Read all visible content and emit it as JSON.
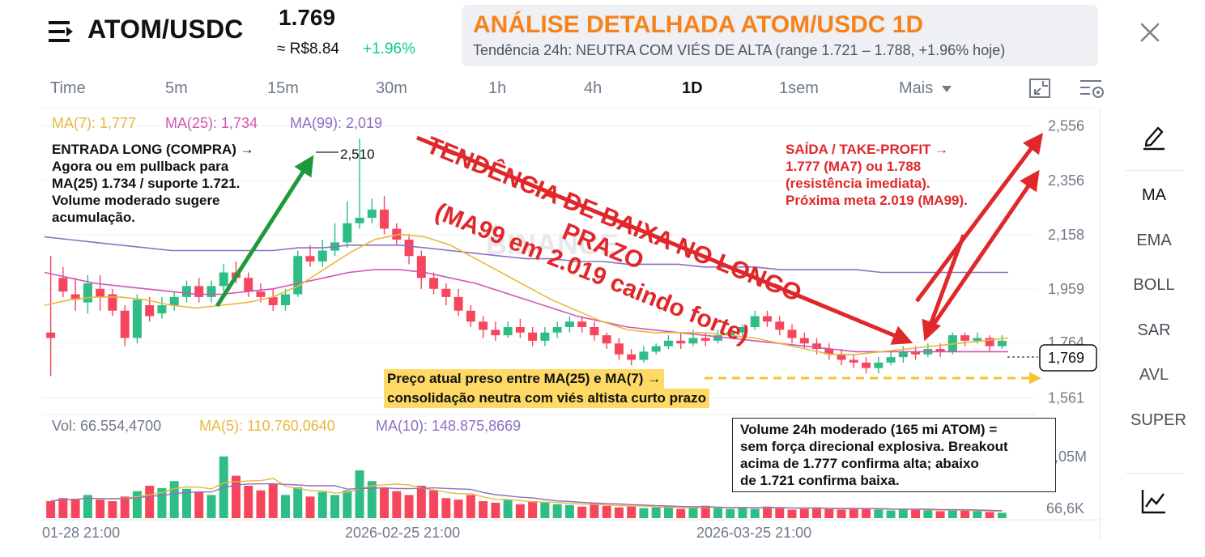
{
  "header": {
    "pair": "ATOM/USDC",
    "price": "1.769",
    "fiat": "≈ R$8.84",
    "change": "+1.96%"
  },
  "banner": {
    "title": "ANÁLISE DETALHADA ATOM/USDC 1D",
    "subtitle": "Tendência 24h: NEUTRA COM VIÉS DE ALTA (range 1.721 – 1.788, +1.96% hoje)"
  },
  "tabs": [
    "Time",
    "5m",
    "15m",
    "30m",
    "1h",
    "4h",
    "1D",
    "1sem",
    "Mais"
  ],
  "active_tab": "1D",
  "side_panel": [
    "MA",
    "EMA",
    "BOLL",
    "SAR",
    "AVL",
    "SUPER"
  ],
  "icons": {
    "menu": "menu-icon",
    "close": "close-icon",
    "toolbar1": "fullscreen-icon",
    "toolbar2": "settings-icon",
    "draw": "pencil-icon",
    "indicator": "chart-line-icon",
    "dropdown": "caret-down-icon"
  },
  "legend": {
    "ma7": "MA(7): 1,777",
    "ma25": "MA(25): 1,734",
    "ma99": "MA(99): 2,019",
    "vol": "Vol: 66.554,4700",
    "vma5": "MA(5): 110.760,0640",
    "vma10": "MA(10): 148.875,8669"
  },
  "watermark": "BINANCE",
  "annotations": {
    "trend_title_1": "TENDÊNCIA DE BAIXA NO LONGO PRAZO",
    "trend_title_2": "(MA99 em 2.019 caindo forte)",
    "entry": [
      "ENTRADA LONG (COMPRA) →",
      "Agora ou em pullback para",
      "MA(25) 1.734 / suporte 1.721.",
      "Volume moderado sugere",
      "acumulação."
    ],
    "exit": [
      "SAÍDA / TAKE-PROFIT →",
      "1.777 (MA7) ou 1.788",
      "(resistência imediata).",
      "Próxima meta 2.019 (MA99)."
    ],
    "yellow": [
      "Preço atual preso entre MA(25) e MA(7) →",
      "consolidação neutra com viés altista curto prazo"
    ],
    "volume_box": [
      "Volume 24h moderado (165 mi ATOM) =",
      "sem força direcional explosiva. Breakout",
      "acima de 1.777 confirma alta; abaixo",
      "de 1.721 confirma baixa."
    ]
  },
  "chart_data": {
    "type": "candlestick",
    "y_ticks": [
      "2,556",
      "2,356",
      "2,158",
      "1,959",
      "1,764",
      "1,561"
    ],
    "ylim": [
      1.5,
      2.62
    ],
    "high_label": "2,510",
    "current_price_label": "1,769",
    "volume_ticks": [
      "1,05M",
      "66,6K"
    ],
    "x_ticks": [
      "01-28 21:00",
      "2026-02-25 21:00",
      "2026-03-25 21:00"
    ],
    "candles": [
      [
        1.8,
        1.78,
        2.08,
        1.64
      ],
      [
        2.0,
        1.95,
        2.04,
        1.93
      ],
      [
        1.94,
        1.92,
        2.0,
        1.88
      ],
      [
        1.91,
        1.98,
        2.01,
        1.87
      ],
      [
        1.96,
        1.93,
        2.01,
        1.88
      ],
      [
        1.94,
        1.88,
        1.96,
        1.86
      ],
      [
        1.88,
        1.78,
        1.9,
        1.75
      ],
      [
        1.78,
        1.92,
        1.94,
        1.76
      ],
      [
        1.9,
        1.86,
        1.93,
        1.84
      ],
      [
        1.87,
        1.9,
        1.93,
        1.85
      ],
      [
        1.9,
        1.93,
        1.95,
        1.88
      ],
      [
        1.93,
        1.97,
        1.99,
        1.91
      ],
      [
        1.97,
        1.93,
        2.0,
        1.91
      ],
      [
        1.93,
        1.97,
        1.99,
        1.91
      ],
      [
        1.97,
        2.02,
        2.05,
        1.95
      ],
      [
        2.02,
        2.0,
        2.06,
        1.98
      ],
      [
        2.0,
        1.95,
        2.02,
        1.93
      ],
      [
        1.95,
        1.93,
        1.98,
        1.91
      ],
      [
        1.93,
        1.9,
        1.96,
        1.88
      ],
      [
        1.9,
        1.94,
        1.96,
        1.88
      ],
      [
        1.94,
        2.08,
        2.1,
        1.93
      ],
      [
        2.08,
        2.06,
        2.12,
        2.04
      ],
      [
        2.06,
        2.1,
        2.14,
        2.04
      ],
      [
        2.1,
        2.13,
        2.2,
        2.08
      ],
      [
        2.13,
        2.2,
        2.28,
        2.11
      ],
      [
        2.2,
        2.22,
        2.51,
        2.18
      ],
      [
        2.22,
        2.25,
        2.29,
        2.2
      ],
      [
        2.25,
        2.18,
        2.3,
        2.16
      ],
      [
        2.18,
        2.14,
        2.2,
        2.12
      ],
      [
        2.14,
        2.08,
        2.16,
        2.05
      ],
      [
        2.08,
        2.0,
        2.1,
        1.96
      ],
      [
        2.0,
        1.96,
        2.02,
        1.94
      ],
      [
        1.96,
        1.93,
        1.98,
        1.9
      ],
      [
        1.93,
        1.88,
        1.96,
        1.86
      ],
      [
        1.88,
        1.84,
        1.9,
        1.82
      ],
      [
        1.84,
        1.81,
        1.86,
        1.78
      ],
      [
        1.81,
        1.79,
        1.84,
        1.77
      ],
      [
        1.79,
        1.82,
        1.84,
        1.78
      ],
      [
        1.82,
        1.8,
        1.85,
        1.78
      ],
      [
        1.8,
        1.77,
        1.82,
        1.75
      ],
      [
        1.77,
        1.8,
        1.82,
        1.75
      ],
      [
        1.8,
        1.82,
        1.84,
        1.78
      ],
      [
        1.82,
        1.84,
        1.86,
        1.8
      ],
      [
        1.84,
        1.82,
        1.86,
        1.8
      ],
      [
        1.82,
        1.79,
        1.84,
        1.77
      ],
      [
        1.79,
        1.76,
        1.8,
        1.74
      ],
      [
        1.76,
        1.72,
        1.78,
        1.7
      ],
      [
        1.72,
        1.7,
        1.74,
        1.68
      ],
      [
        1.7,
        1.73,
        1.75,
        1.69
      ],
      [
        1.73,
        1.75,
        1.76,
        1.72
      ],
      [
        1.75,
        1.77,
        1.79,
        1.74
      ],
      [
        1.77,
        1.76,
        1.8,
        1.74
      ],
      [
        1.76,
        1.78,
        1.81,
        1.75
      ],
      [
        1.78,
        1.77,
        1.8,
        1.75
      ],
      [
        1.77,
        1.79,
        1.81,
        1.76
      ],
      [
        1.79,
        1.8,
        1.82,
        1.78
      ],
      [
        1.8,
        1.82,
        1.83,
        1.78
      ],
      [
        1.82,
        1.86,
        1.88,
        1.81
      ],
      [
        1.86,
        1.84,
        1.88,
        1.82
      ],
      [
        1.84,
        1.81,
        1.86,
        1.79
      ],
      [
        1.81,
        1.78,
        1.83,
        1.76
      ],
      [
        1.78,
        1.76,
        1.8,
        1.74
      ],
      [
        1.76,
        1.74,
        1.78,
        1.72
      ],
      [
        1.74,
        1.72,
        1.76,
        1.7
      ],
      [
        1.72,
        1.7,
        1.74,
        1.68
      ],
      [
        1.7,
        1.69,
        1.72,
        1.67
      ],
      [
        1.69,
        1.67,
        1.71,
        1.65
      ],
      [
        1.67,
        1.69,
        1.71,
        1.65
      ],
      [
        1.69,
        1.71,
        1.73,
        1.68
      ],
      [
        1.71,
        1.73,
        1.75,
        1.69
      ],
      [
        1.73,
        1.72,
        1.75,
        1.7
      ],
      [
        1.72,
        1.74,
        1.76,
        1.71
      ],
      [
        1.74,
        1.73,
        1.76,
        1.71
      ],
      [
        1.73,
        1.79,
        1.8,
        1.72
      ],
      [
        1.79,
        1.77,
        1.8,
        1.75
      ],
      [
        1.77,
        1.78,
        1.8,
        1.76
      ],
      [
        1.78,
        1.75,
        1.79,
        1.73
      ],
      [
        1.75,
        1.77,
        1.79,
        1.74
      ]
    ],
    "ma7": [
      1.9,
      1.92,
      1.93,
      1.93,
      1.92,
      1.9,
      1.89,
      1.9,
      1.91,
      1.93,
      1.97,
      2.03,
      2.09,
      2.14,
      2.16,
      2.15,
      2.12,
      2.07,
      2.02,
      1.97,
      1.92,
      1.88,
      1.84,
      1.81,
      1.8,
      1.8,
      1.8,
      1.79,
      1.78,
      1.76,
      1.74,
      1.72,
      1.72,
      1.73,
      1.74,
      1.75,
      1.76,
      1.77,
      1.78
    ],
    "ma25": [
      2.02,
      2.0,
      1.98,
      1.97,
      1.96,
      1.95,
      1.94,
      1.94,
      1.95,
      1.96,
      1.98,
      2.0,
      2.02,
      2.03,
      2.03,
      2.02,
      2.0,
      1.98,
      1.95,
      1.92,
      1.89,
      1.86,
      1.84,
      1.82,
      1.81,
      1.8,
      1.79,
      1.78,
      1.77,
      1.76,
      1.75,
      1.74,
      1.73,
      1.73,
      1.73,
      1.73,
      1.73,
      1.73,
      1.73
    ],
    "ma99": [
      2.15,
      2.14,
      2.13,
      2.12,
      2.11,
      2.1,
      2.1,
      2.1,
      2.1,
      2.1,
      2.11,
      2.11,
      2.12,
      2.12,
      2.12,
      2.11,
      2.1,
      2.09,
      2.08,
      2.07,
      2.07,
      2.06,
      2.06,
      2.05,
      2.05,
      2.05,
      2.04,
      2.04,
      2.04,
      2.03,
      2.03,
      2.03,
      2.03,
      2.02,
      2.02,
      2.02,
      2.02,
      2.02,
      2.02
    ],
    "volume_scale": [
      0,
      1.05
    ],
    "volumes": [
      0.22,
      0.26,
      0.25,
      0.3,
      0.24,
      0.22,
      0.28,
      0.35,
      0.42,
      0.39,
      0.48,
      0.38,
      0.34,
      0.3,
      0.8,
      0.55,
      0.42,
      0.36,
      0.45,
      0.3,
      0.4,
      0.28,
      0.34,
      0.3,
      0.36,
      0.62,
      0.48,
      0.4,
      0.35,
      0.3,
      0.42,
      0.36,
      0.26,
      0.24,
      0.3,
      0.22,
      0.2,
      0.24,
      0.18,
      0.22,
      0.2,
      0.18,
      0.17,
      0.15,
      0.2,
      0.16,
      0.14,
      0.15,
      0.13,
      0.14,
      0.15,
      0.12,
      0.14,
      0.16,
      0.13,
      0.12,
      0.14,
      0.12,
      0.15,
      0.13,
      0.11,
      0.12,
      0.14,
      0.12,
      0.11,
      0.12,
      0.13,
      0.11,
      0.1,
      0.12,
      0.11,
      0.1,
      0.09,
      0.11,
      0.1,
      0.09,
      0.08,
      0.07
    ],
    "colors": {
      "up": "#2ebd85",
      "down": "#f6465d",
      "ma7": "#e8b83a",
      "ma25": "#d055b5",
      "ma99": "#8e70c2",
      "annotation_red": "#e0272a",
      "annotation_green": "#1f9a3a"
    }
  }
}
